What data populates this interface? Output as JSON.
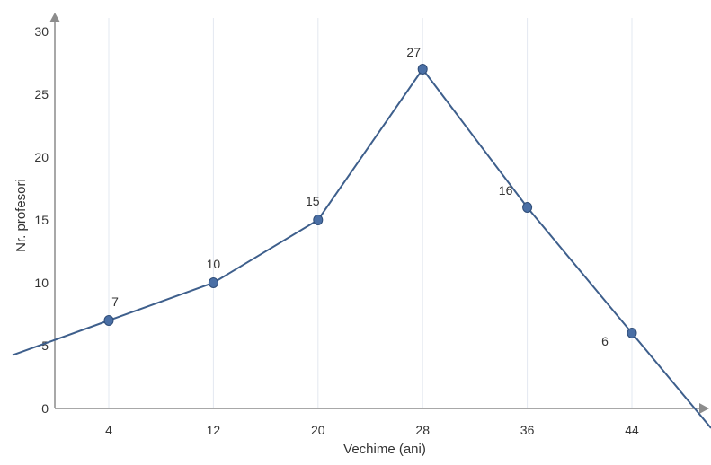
{
  "chart_data": {
    "type": "line",
    "title": "",
    "xlabel": "Vechime (ani)",
    "ylabel": "Nr. profesori",
    "ylim": [
      0,
      30
    ],
    "y_ticks": [
      "0",
      "5",
      "10",
      "15",
      "20",
      "25",
      "30"
    ],
    "grid": "vertical",
    "categories": [
      "4",
      "12",
      "20",
      "28",
      "36",
      "44"
    ],
    "series": [
      {
        "values": [
          7,
          10,
          15,
          27,
          16,
          6
        ]
      }
    ],
    "data_labels": [
      "7",
      "10",
      "15",
      "27",
      "16",
      "6"
    ],
    "line_extends_to_axes": true,
    "colors": {
      "line": "#3e5f8c",
      "marker": "#4a6fa5",
      "axis": "#8c8c8c",
      "grid": "#e3e8f0",
      "text": "#333333"
    }
  }
}
